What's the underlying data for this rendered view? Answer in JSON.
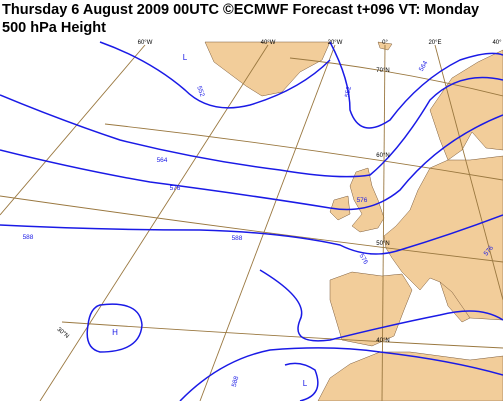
{
  "header": {
    "title_line1": "Thursday 6 August 2009 00UTC ©ECMWF Forecast t+096 VT: Monday",
    "title_line2": "500 hPa Height"
  },
  "map": {
    "longitude_labels": [
      "60°W",
      "40°W",
      "20°W",
      "0°",
      "20°E",
      "40°"
    ],
    "latitude_labels": [
      "70°N",
      "60°N",
      "50°N",
      "40°N",
      "30°N"
    ],
    "contour_labels": [
      "552",
      "552",
      "564",
      "564",
      "576",
      "576",
      "576",
      "588",
      "588",
      "576",
      "588"
    ],
    "pressure_centres": [
      "L",
      "L",
      "H"
    ]
  }
}
